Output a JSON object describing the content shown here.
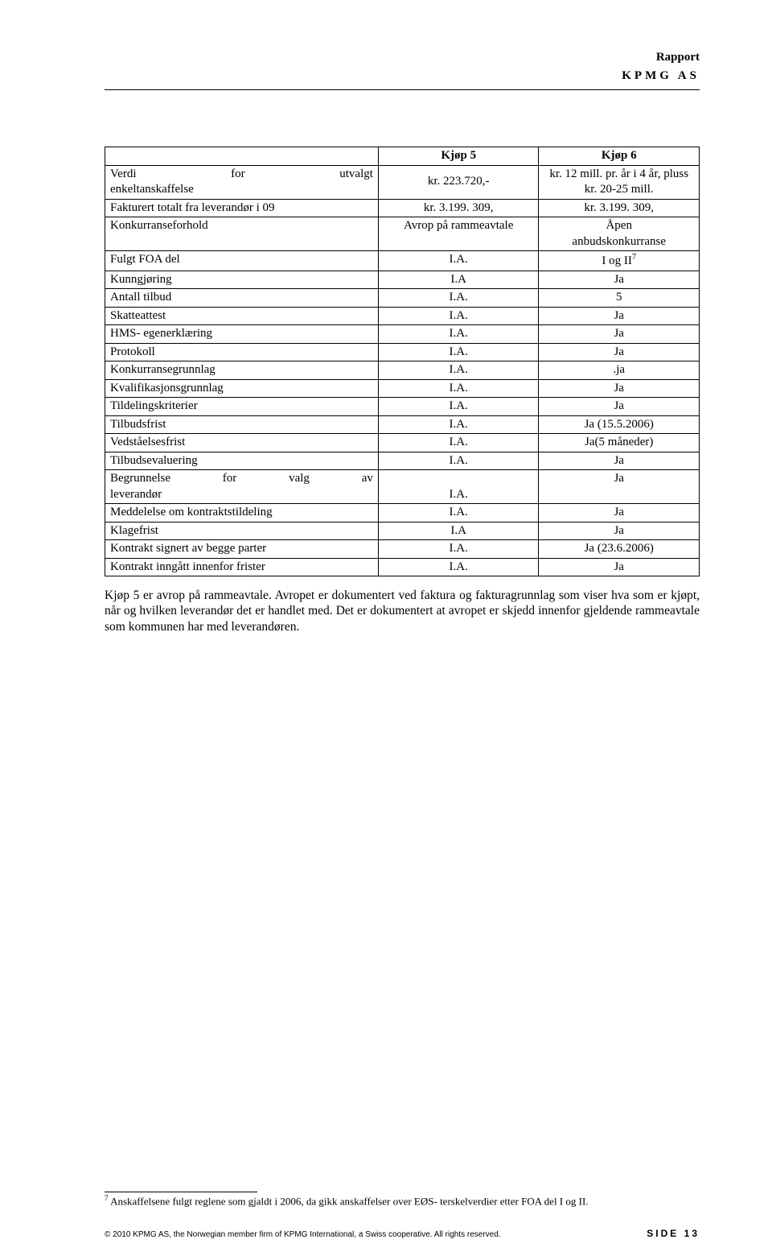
{
  "header": {
    "line1": "Rapport",
    "line2": "KPMG AS"
  },
  "table": {
    "head": {
      "c1": "",
      "c2": "Kjøp 5",
      "c3": "Kjøp 6"
    },
    "rows": [
      {
        "c1a": "Verdi",
        "c1b": "for",
        "c1c": "utvalgt",
        "c1_line2": "enkeltanskaffelse",
        "c2": "kr. 223.720,-",
        "c3": "kr. 12 mill. pr. år i 4 år, pluss kr. 20-25 mill.",
        "multiline": true,
        "justify": true
      },
      {
        "c1": "Fakturert totalt fra leverandør i 09",
        "c2": "kr. 3.199. 309,",
        "c3": "kr. 3.199. 309,"
      },
      {
        "c1": "Konkurranseforhold",
        "c2": "Avrop på rammeavtale",
        "c3": "Åpen anbudskonkurranse",
        "c3_two_lines": true
      },
      {
        "c1": "Fulgt FOA del",
        "c2": "I.A.",
        "c3_pre": "I og II",
        "c3_sup": "7"
      },
      {
        "c1": "Kunngjøring",
        "c2": "I.A",
        "c3": "Ja"
      },
      {
        "c1": "Antall tilbud",
        "c2": "I.A.",
        "c3": "5"
      },
      {
        "c1": "Skatteattest",
        "c2": "I.A.",
        "c3": "Ja"
      },
      {
        "c1": "HMS- egenerklæring",
        "c2": "I.A.",
        "c3": "Ja"
      },
      {
        "c1": "Protokoll",
        "c2": "I.A.",
        "c3": "Ja"
      },
      {
        "c1": "Konkurransegrunnlag",
        "c2": "I.A.",
        "c3": ".ja"
      },
      {
        "c1": "Kvalifikasjonsgrunnlag",
        "c2": "I.A.",
        "c3": "Ja"
      },
      {
        "c1": "Tildelingskriterier",
        "c2": "I.A.",
        "c3": "Ja"
      },
      {
        "c1": "Tilbudsfrist",
        "c2": "I.A.",
        "c3": "Ja (15.5.2006)"
      },
      {
        "c1": "Vedståelsesfrist",
        "c2": "I.A.",
        "c3": "Ja(5 måneder)"
      },
      {
        "c1": "Tilbudsevaluering",
        "c2": "I.A.",
        "c3": "Ja"
      },
      {
        "c1a": "Begrunnelse",
        "c1b": "for",
        "c1c": "valg",
        "c1d": "av",
        "c1_line2": "leverandør",
        "c2": "I.A.",
        "c3": "Ja",
        "justify4": true,
        "c2_bottom": true
      },
      {
        "c1": "Meddelelse om kontraktstildeling",
        "c2": "I.A.",
        "c3": "Ja"
      },
      {
        "c1": "Klagefrist",
        "c2": "I.A",
        "c3": "Ja"
      },
      {
        "c1": "Kontrakt signert av begge parter",
        "c2": "I.A.",
        "c3": "Ja (23.6.2006)"
      },
      {
        "c1": "Kontrakt inngått innenfor frister",
        "c2": "I.A.",
        "c3": "Ja"
      }
    ]
  },
  "paragraph": "Kjøp 5 er avrop på rammeavtale. Avropet er dokumentert ved faktura og fakturagrunnlag som viser hva som er kjøpt, når og hvilken leverandør det er handlet med. Det er dokumentert at avropet er skjedd innenfor gjeldende rammeavtale som kommunen har med leverandøren.",
  "footnote": {
    "num": "7",
    "text": " Anskaffelsene fulgt reglene som gjaldt i 2006, da gikk anskaffelser over EØS- terskelverdier etter FOA del I og II."
  },
  "footer": {
    "copyright": "© 2010 KPMG AS, the Norwegian member firm of KPMG International, a Swiss cooperative. All rights reserved.",
    "page_label": "SIDE 13"
  }
}
